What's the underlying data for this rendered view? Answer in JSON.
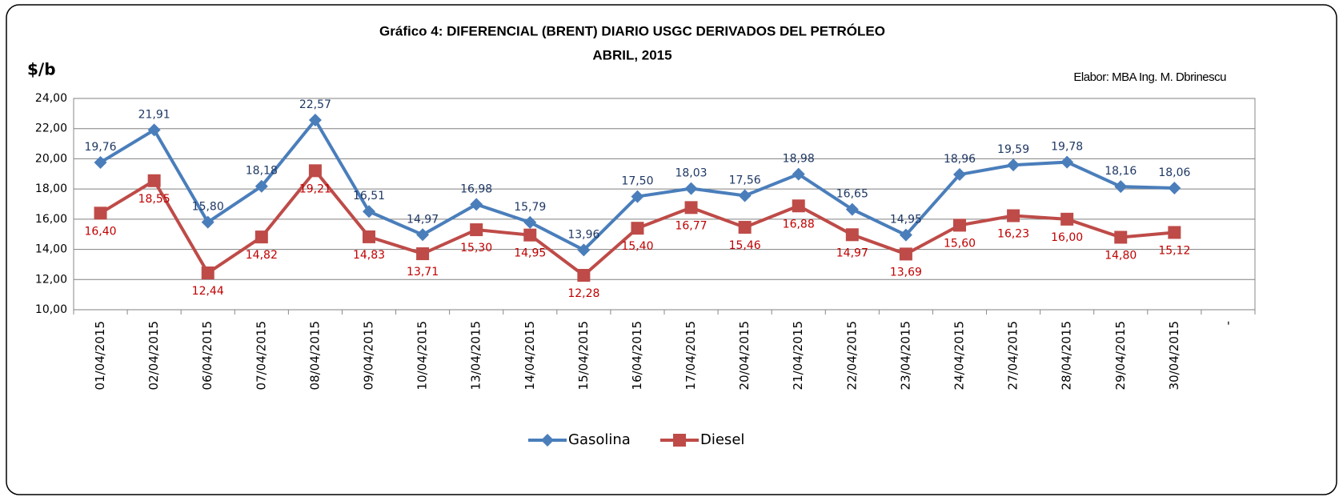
{
  "chart_data": {
    "type": "line",
    "title": "Gráfico 4: DIFERENCIAL (BRENT) DIARIO USGC DERIVADOS DEL PETRÓLEO",
    "subtitle": "ABRIL, 2015",
    "y_label": "$/b",
    "annotation": "Elabor: MBA Ing. M. Dbrinescu",
    "categories": [
      "01/04/2015",
      "02/04/2015",
      "06/04/2015",
      "07/04/2015",
      "08/04/2015",
      "09/04/2015",
      "10/04/2015",
      "13/04/2015",
      "14/04/2015",
      "15/04/2015",
      "16/04/2015",
      "17/04/2015",
      "20/04/2015",
      "21/04/2015",
      "22/04/2015",
      "23/04/2015",
      "24/04/2015",
      "27/04/2015",
      "28/04/2015",
      "29/04/2015",
      "30/04/2015",
      "-"
    ],
    "series": [
      {
        "name": "Gasolina",
        "color": "#4a7ebb",
        "label_color": "#1f3864",
        "marker": "diamond",
        "values": [
          19.76,
          21.91,
          15.8,
          18.18,
          22.57,
          16.51,
          14.97,
          16.98,
          15.79,
          13.96,
          17.5,
          18.03,
          17.56,
          18.98,
          16.65,
          14.95,
          18.96,
          19.59,
          19.78,
          18.16,
          18.06,
          null
        ],
        "value_labels": [
          "19,76",
          "21,91",
          "15,80",
          "18,18",
          "22,57",
          "16,51",
          "14,97",
          "16,98",
          "15,79",
          "13,96",
          "17,50",
          "18,03",
          "17,56",
          "18,98",
          "16,65",
          "14,95",
          "18,96",
          "19,59",
          "19,78",
          "18,16",
          "18,06",
          null
        ]
      },
      {
        "name": "Diesel",
        "color": "#be4b48",
        "label_color": "#c00000",
        "marker": "square",
        "values": [
          16.4,
          18.55,
          12.44,
          14.82,
          19.21,
          14.83,
          13.71,
          15.3,
          14.95,
          12.28,
          15.4,
          16.77,
          15.46,
          16.88,
          14.97,
          13.69,
          15.6,
          16.23,
          16.0,
          14.8,
          15.12,
          null
        ],
        "value_labels": [
          "16,40",
          "18,55",
          "12,44",
          "14,82",
          "19,21",
          "14,83",
          "13,71",
          "15,30",
          "14,95",
          "12,28",
          "15,40",
          "16,77",
          "15,46",
          "16,88",
          "14,97",
          "13,69",
          "15,60",
          "16,23",
          "16,00",
          "14,80",
          "15,12",
          null
        ]
      }
    ],
    "ylim": [
      10,
      24
    ],
    "yticks": [
      {
        "value": 10,
        "label": "10,00"
      },
      {
        "value": 12,
        "label": "12,00"
      },
      {
        "value": 14,
        "label": "14,00"
      },
      {
        "value": 16,
        "label": "16,00"
      },
      {
        "value": 18,
        "label": "18,00"
      },
      {
        "value": 20,
        "label": "20,00"
      },
      {
        "value": 22,
        "label": "22,00"
      },
      {
        "value": 24,
        "label": "24,00"
      }
    ],
    "grid": true,
    "legend": "bottom"
  }
}
